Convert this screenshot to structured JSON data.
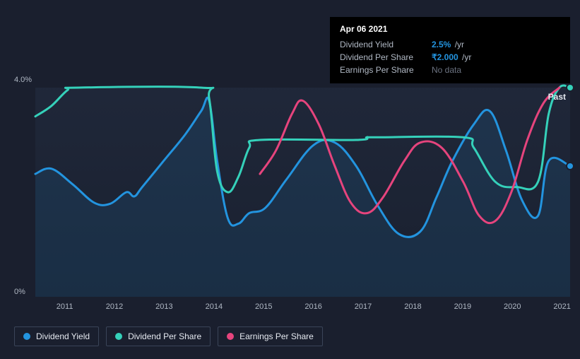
{
  "tooltip": {
    "date": "Apr 06 2021",
    "rows": [
      {
        "label": "Dividend Yield",
        "value": "2.5%",
        "unit": "/yr",
        "kind": "value"
      },
      {
        "label": "Dividend Per Share",
        "value": "₹2.000",
        "unit": "/yr",
        "kind": "value"
      },
      {
        "label": "Earnings Per Share",
        "value": "No data",
        "unit": "",
        "kind": "nodata"
      }
    ]
  },
  "chart": {
    "type": "line",
    "background_color": "#1a1f2e",
    "plot_bg_gradient": [
      "rgba(35,45,65,0.6)",
      "rgba(25,33,48,0.6)"
    ],
    "ylim": [
      0,
      4.0
    ],
    "ytick_labels": [
      {
        "y": 0,
        "text": "0%"
      },
      {
        "y": 4.0,
        "text": "4.0%"
      }
    ],
    "xtick_labels": [
      "2011",
      "2012",
      "2013",
      "2014",
      "2015",
      "2016",
      "2017",
      "2018",
      "2019",
      "2020",
      "2021"
    ],
    "xtick_positions_pct": [
      5.5,
      14.8,
      24.1,
      33.4,
      42.7,
      52.0,
      61.3,
      70.6,
      79.9,
      89.2,
      98.5
    ],
    "line_width": 3,
    "past_label": "Past",
    "series": [
      {
        "name": "Dividend Yield",
        "color": "#2394df",
        "points": [
          {
            "x": 0,
            "y": 2.35
          },
          {
            "x": 3,
            "y": 2.45
          },
          {
            "x": 7,
            "y": 2.15
          },
          {
            "x": 11,
            "y": 1.8
          },
          {
            "x": 14,
            "y": 1.78
          },
          {
            "x": 17,
            "y": 2.0
          },
          {
            "x": 18.5,
            "y": 1.92
          },
          {
            "x": 20,
            "y": 2.1
          },
          {
            "x": 24,
            "y": 2.6
          },
          {
            "x": 28,
            "y": 3.1
          },
          {
            "x": 31,
            "y": 3.55
          },
          {
            "x": 32.5,
            "y": 3.75
          },
          {
            "x": 34,
            "y": 2.6
          },
          {
            "x": 36,
            "y": 1.5
          },
          {
            "x": 38,
            "y": 1.4
          },
          {
            "x": 40,
            "y": 1.6
          },
          {
            "x": 43,
            "y": 1.7
          },
          {
            "x": 47,
            "y": 2.25
          },
          {
            "x": 52,
            "y": 2.9
          },
          {
            "x": 56,
            "y": 2.95
          },
          {
            "x": 60,
            "y": 2.5
          },
          {
            "x": 64,
            "y": 1.75
          },
          {
            "x": 68,
            "y": 1.2
          },
          {
            "x": 72,
            "y": 1.25
          },
          {
            "x": 75,
            "y": 1.9
          },
          {
            "x": 78,
            "y": 2.6
          },
          {
            "x": 82,
            "y": 3.3
          },
          {
            "x": 85,
            "y": 3.55
          },
          {
            "x": 88,
            "y": 2.8
          },
          {
            "x": 91,
            "y": 1.85
          },
          {
            "x": 94,
            "y": 1.55
          },
          {
            "x": 96,
            "y": 2.6
          },
          {
            "x": 100,
            "y": 2.5
          }
        ],
        "fill": true,
        "fill_opacity": 0.12,
        "end_dot": true
      },
      {
        "name": "Dividend Per Share",
        "color": "#35d1ba",
        "points": [
          {
            "x": 0,
            "y": 3.45
          },
          {
            "x": 3,
            "y": 3.65
          },
          {
            "x": 6,
            "y": 3.95
          },
          {
            "x": 8,
            "y": 4.0
          },
          {
            "x": 31,
            "y": 4.0
          },
          {
            "x": 32.5,
            "y": 3.8
          },
          {
            "x": 34,
            "y": 2.4
          },
          {
            "x": 36,
            "y": 2.0
          },
          {
            "x": 38,
            "y": 2.3
          },
          {
            "x": 40,
            "y": 2.85
          },
          {
            "x": 42,
            "y": 3.0
          },
          {
            "x": 60,
            "y": 3.0
          },
          {
            "x": 62,
            "y": 3.05
          },
          {
            "x": 64,
            "y": 3.05
          },
          {
            "x": 80,
            "y": 3.05
          },
          {
            "x": 82,
            "y": 2.85
          },
          {
            "x": 86,
            "y": 2.2
          },
          {
            "x": 90,
            "y": 2.1
          },
          {
            "x": 94,
            "y": 2.2
          },
          {
            "x": 96,
            "y": 3.5
          },
          {
            "x": 98,
            "y": 4.0
          },
          {
            "x": 100,
            "y": 4.0
          }
        ],
        "fill": false,
        "end_dot": true
      },
      {
        "name": "Earnings Per Share",
        "color": "#e6447d",
        "points": [
          {
            "x": 42,
            "y": 2.35
          },
          {
            "x": 45,
            "y": 2.8
          },
          {
            "x": 48,
            "y": 3.5
          },
          {
            "x": 50,
            "y": 3.75
          },
          {
            "x": 53,
            "y": 3.3
          },
          {
            "x": 56,
            "y": 2.5
          },
          {
            "x": 59,
            "y": 1.8
          },
          {
            "x": 62,
            "y": 1.6
          },
          {
            "x": 65,
            "y": 1.9
          },
          {
            "x": 69,
            "y": 2.6
          },
          {
            "x": 72,
            "y": 2.95
          },
          {
            "x": 76,
            "y": 2.85
          },
          {
            "x": 80,
            "y": 2.2
          },
          {
            "x": 83,
            "y": 1.55
          },
          {
            "x": 86,
            "y": 1.45
          },
          {
            "x": 89,
            "y": 2.0
          },
          {
            "x": 92,
            "y": 3.0
          },
          {
            "x": 95,
            "y": 3.7
          },
          {
            "x": 98,
            "y": 4.0
          }
        ],
        "fill": false,
        "end_dot": false
      }
    ],
    "legend": [
      {
        "label": "Dividend Yield",
        "color": "#2394df"
      },
      {
        "label": "Dividend Per Share",
        "color": "#35d1ba"
      },
      {
        "label": "Earnings Per Share",
        "color": "#e6447d"
      }
    ]
  }
}
